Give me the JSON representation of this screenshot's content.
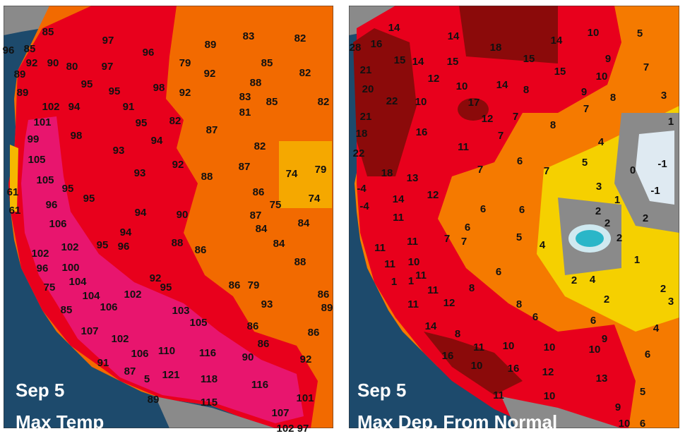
{
  "panels": [
    {
      "caption_date": "Sep 5",
      "caption_title": "Max Temp",
      "labels": [
        "85",
        "96",
        "85",
        "97",
        "96",
        "83",
        "82",
        "89",
        "92",
        "90",
        "80",
        "97",
        "79",
        "85",
        "82",
        "89",
        "95",
        "95",
        "98",
        "92",
        "88",
        "89",
        "92",
        "83",
        "85",
        "82",
        "102",
        "94",
        "91",
        "81",
        "101",
        "95",
        "82",
        "87",
        "98",
        "99",
        "94",
        "93",
        "82",
        "105",
        "92",
        "87",
        "74",
        "79",
        "93",
        "88",
        "105",
        "95",
        "95",
        "86",
        "74",
        "61",
        "96",
        "94",
        "90",
        "87",
        "75",
        "61",
        "106",
        "94",
        "84",
        "84",
        "102",
        "95",
        "96",
        "88",
        "86",
        "84",
        "102",
        "100",
        "96",
        "88",
        "104",
        "92",
        "95",
        "75",
        "86",
        "79",
        "86",
        "102",
        "93",
        "104",
        "106",
        "89",
        "103",
        "85",
        "105",
        "86",
        "107",
        "86",
        "102",
        "86",
        "106",
        "110",
        "116",
        "90",
        "92",
        "91",
        "87",
        "5",
        "121",
        "118",
        "116",
        "101",
        "89",
        "115",
        "107",
        "102",
        "97"
      ]
    },
    {
      "caption_date": "Sep 5",
      "caption_title": "Max Dep. From Normal",
      "labels": [
        "14",
        "14",
        "10",
        "5",
        "28",
        "16",
        "18",
        "14",
        "15",
        "14",
        "15",
        "15",
        "9",
        "7",
        "21",
        "12",
        "15",
        "10",
        "20",
        "10",
        "14",
        "8",
        "9",
        "8",
        "3",
        "22",
        "10",
        "17",
        "7",
        "21",
        "12",
        "7",
        "1",
        "18",
        "16",
        "7",
        "8",
        "4",
        "22",
        "11",
        "6",
        "5",
        "0",
        "-1",
        "18",
        "13",
        "7",
        "7",
        "-4",
        "14",
        "12",
        "3",
        "1",
        "-1",
        "-4",
        "11",
        "6",
        "6",
        "2",
        "6",
        "2",
        "2",
        "11",
        "7",
        "7",
        "5",
        "4",
        "2",
        "11",
        "10",
        "1",
        "11",
        "11",
        "6",
        "1",
        "2",
        "4",
        "2",
        "1",
        "11",
        "8",
        "2",
        "3",
        "11",
        "12",
        "8",
        "6",
        "6",
        "4",
        "14",
        "8",
        "9",
        "10",
        "11",
        "10",
        "10",
        "6",
        "16",
        "10",
        "16",
        "12",
        "13",
        "5",
        "11",
        "10",
        "9",
        "10",
        "6"
      ]
    }
  ]
}
